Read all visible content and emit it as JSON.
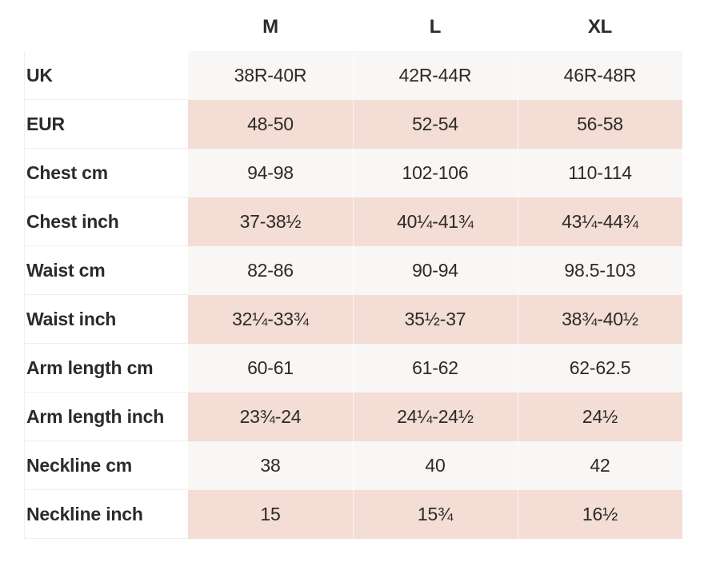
{
  "size_chart": {
    "column_headers": [
      "M",
      "L",
      "XL"
    ],
    "rows": [
      {
        "label": "UK",
        "values": [
          "38R-40R",
          "42R-44R",
          "46R-48R"
        ],
        "shaded": false
      },
      {
        "label": "EUR",
        "values": [
          "48-50",
          "52-54",
          "56-58"
        ],
        "shaded": true
      },
      {
        "label": "Chest cm",
        "values": [
          "94-98",
          "102-106",
          "110-114"
        ],
        "shaded": false
      },
      {
        "label": "Chest inch",
        "values": [
          "37-38½",
          "40¼-41¾",
          "43¼-44¾"
        ],
        "shaded": true
      },
      {
        "label": "Waist cm",
        "values": [
          "82-86",
          "90-94",
          "98.5-103"
        ],
        "shaded": false
      },
      {
        "label": "Waist inch",
        "values": [
          "32¼-33¾",
          "35½-37",
          "38¾-40½"
        ],
        "shaded": true
      },
      {
        "label": "Arm length cm",
        "values": [
          "60-61",
          "61-62",
          "62-62.5"
        ],
        "shaded": false
      },
      {
        "label": "Arm length inch",
        "values": [
          "23¾-24",
          "24¼-24½",
          "24½"
        ],
        "shaded": true
      },
      {
        "label": "Neckline cm",
        "values": [
          "38",
          "40",
          "42"
        ],
        "shaded": false
      },
      {
        "label": "Neckline inch",
        "values": [
          "15",
          "15¾",
          "16½"
        ],
        "shaded": true
      }
    ],
    "colors": {
      "shaded_row_bg": "#f3ddd5",
      "unshaded_row_bg": "#f8f7f5",
      "text": "#2d2a27",
      "label_cell_border": "#f6edea",
      "page_bg": "#ffffff"
    }
  }
}
